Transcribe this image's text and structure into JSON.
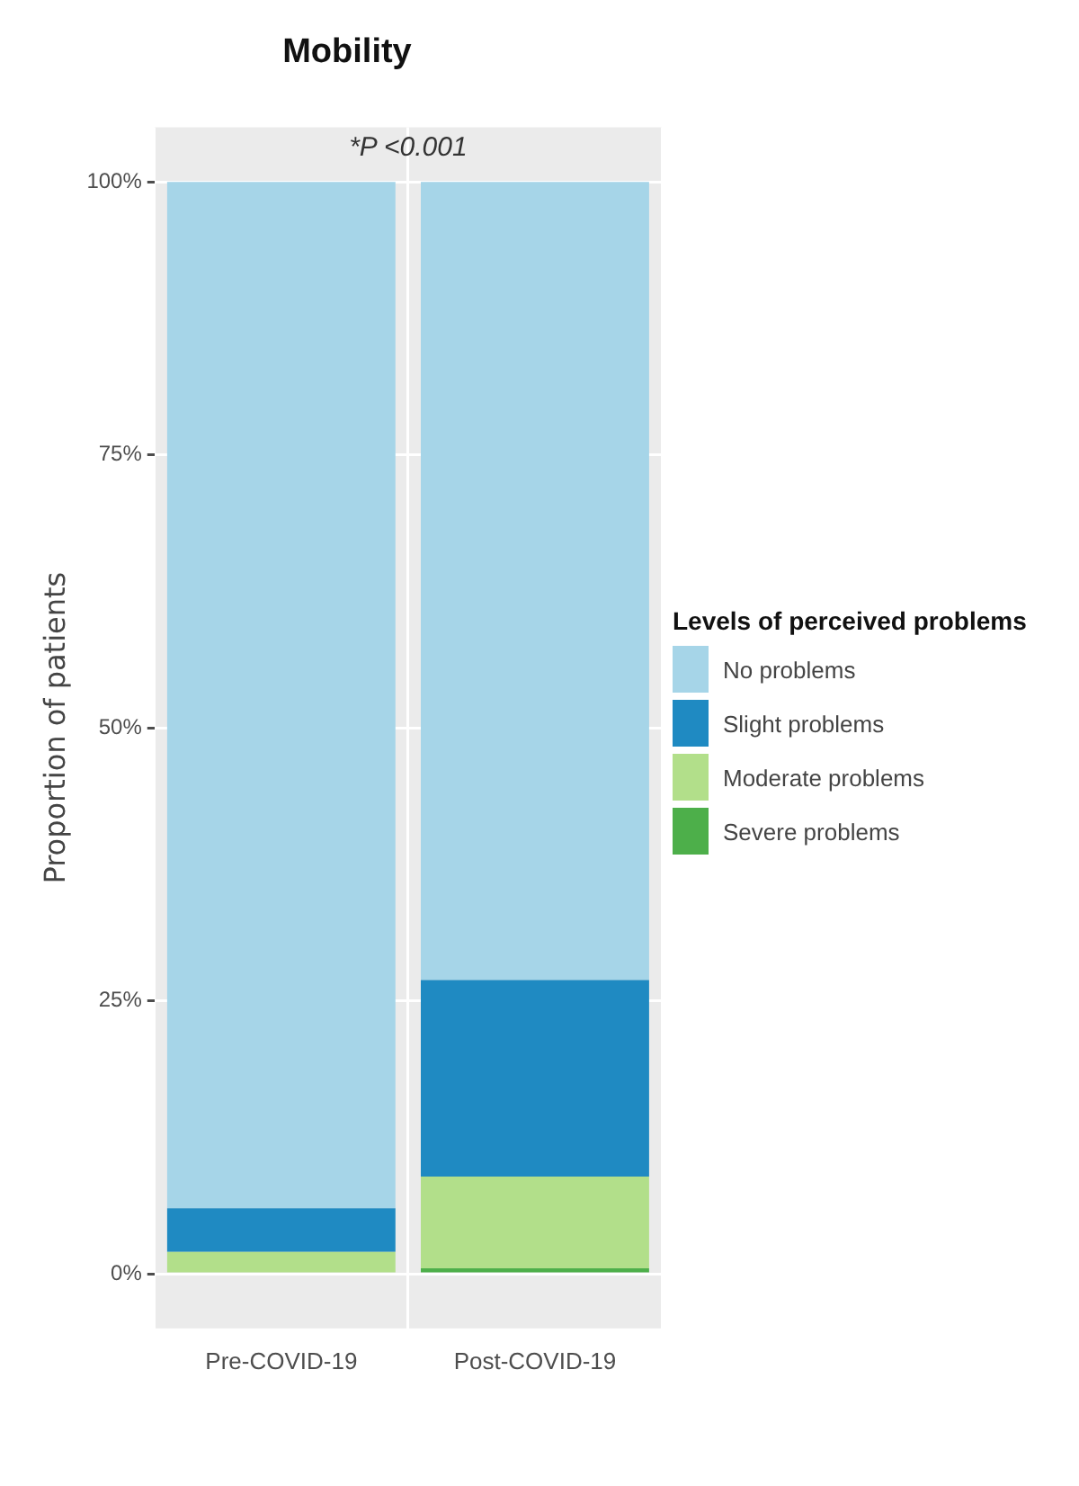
{
  "chart_data": {
    "type": "bar",
    "title": "Mobility",
    "ylabel": "Proportion of patients",
    "legend_title": "Levels of perceived problems",
    "annotations": [
      "*P <0.001"
    ],
    "categories": [
      "Pre-COVID-19",
      "Post-COVID-19"
    ],
    "stacked": true,
    "legend": "right",
    "grid": true,
    "ylim": [
      -5,
      105
    ],
    "yticks": [
      {
        "value": 0,
        "label": "0%"
      },
      {
        "value": 25,
        "label": "25%"
      },
      {
        "value": 50,
        "label": "50%"
      },
      {
        "value": 75,
        "label": "75%"
      },
      {
        "value": 100,
        "label": "100%"
      }
    ],
    "series": [
      {
        "name": "Severe problems",
        "color": "#4daf4a",
        "values": [
          0,
          0.5
        ]
      },
      {
        "name": "Moderate problems",
        "color": "#b2df8a",
        "values": [
          2,
          8.4
        ]
      },
      {
        "name": "Slight problems",
        "color": "#1f8ac2",
        "values": [
          4,
          18
        ]
      },
      {
        "name": "No problems",
        "color": "#a6d5e8",
        "values": [
          94,
          73.1
        ]
      }
    ]
  }
}
